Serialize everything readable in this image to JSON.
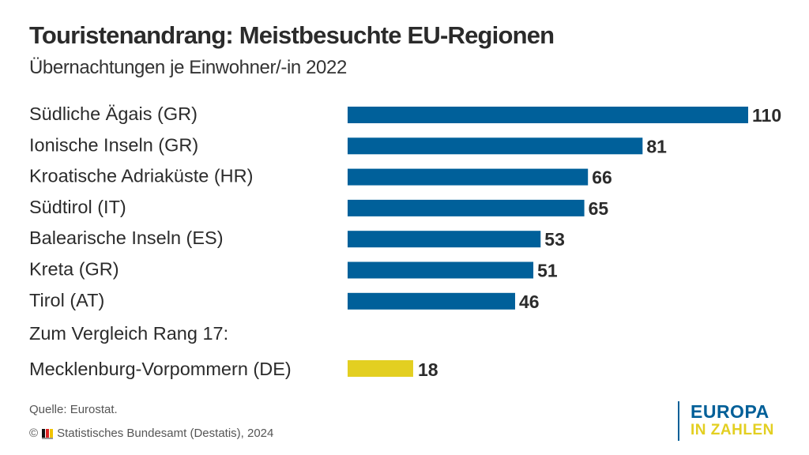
{
  "header": {
    "title": "Touristenandrang: Meistbesuchte EU-Regionen",
    "subtitle": "Übernachtungen je Einwohner/-in 2022"
  },
  "chart_data": {
    "type": "bar",
    "orientation": "horizontal",
    "title": "Touristenandrang: Meistbesuchte EU-Regionen",
    "subtitle": "Übernachtungen je Einwohner/-in 2022",
    "xlabel": "",
    "ylabel": "",
    "grid": false,
    "xlim": [
      0,
      110
    ],
    "categories": [
      "Südliche Ägais (GR)",
      "Ionische Inseln (GR)",
      "Kroatische Adriaküste (HR)",
      "Südtirol (IT)",
      "Balearische Inseln (ES)",
      "Kreta (GR)",
      "Tirol (AT)"
    ],
    "values": [
      110,
      81,
      66,
      65,
      53,
      51,
      46
    ],
    "comparison": {
      "heading": "Zum Vergleich Rang 17:",
      "category": "Mecklenburg-Vorpommern (DE)",
      "value": 18
    },
    "colors": {
      "primary": "#00609a",
      "comparison": "#e3cf21"
    }
  },
  "footer": {
    "source": "Quelle: Eurostat.",
    "copyright_symbol": "©",
    "copyright_text": "Statistisches Bundesamt (Destatis), 2024"
  },
  "brand": {
    "line1": "EUROPA",
    "line2": "IN ZAHLEN"
  }
}
